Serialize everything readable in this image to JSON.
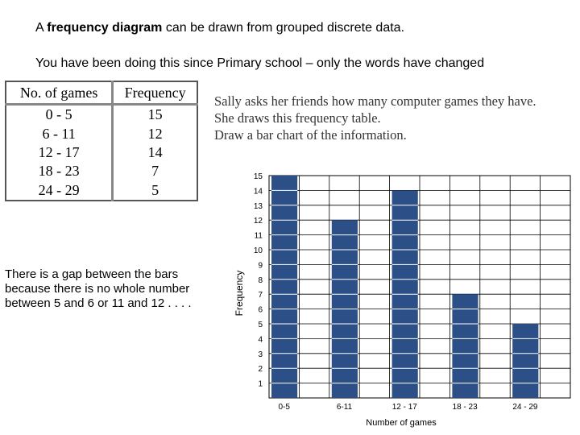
{
  "heading": {
    "line1_pre": "A ",
    "line1_bold": "frequency diagram",
    "line1_post": " can be drawn from grouped discrete data.",
    "line2": "You have been doing this since Primary  school – only the words have changed"
  },
  "table": {
    "headers": [
      "No. of games",
      "Frequency"
    ],
    "rows": [
      [
        "0 - 5",
        "15"
      ],
      [
        "6 - 11",
        "12"
      ],
      [
        "12 - 17",
        "14"
      ],
      [
        "18 - 23",
        "7"
      ],
      [
        "24 - 29",
        "5"
      ]
    ]
  },
  "question": {
    "line1": "Sally asks her friends how many computer games they have.",
    "line2": "She draws this frequency table.",
    "line3": "Draw a bar chart of the information."
  },
  "note": "There is a gap between the bars because there is no whole number between 5 and 6 or 11 and 12 . . . .",
  "chart_data": {
    "type": "bar",
    "categories": [
      "0-5",
      "6-11",
      "12 - 17",
      "18 - 23",
      "24 - 29"
    ],
    "values": [
      15,
      12,
      14,
      7,
      5
    ],
    "yticks": [
      1,
      2,
      3,
      4,
      5,
      6,
      7,
      8,
      9,
      10,
      11,
      12,
      13,
      14,
      15
    ],
    "ylim": [
      0,
      15
    ],
    "xlabel": "Number of games",
    "ylabel": "Frequency",
    "grid": true,
    "bar_color": "#2b4f86"
  }
}
